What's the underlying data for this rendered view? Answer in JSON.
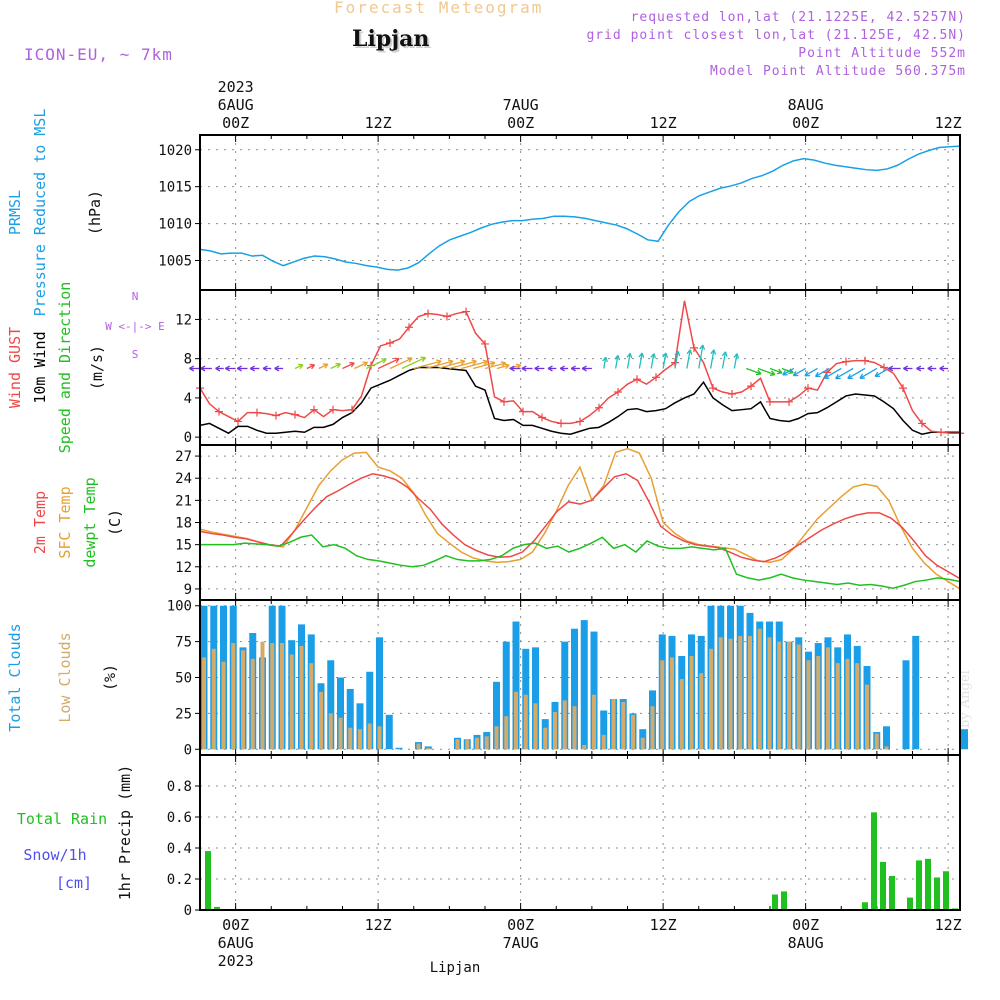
{
  "header": {
    "title": "Forecast Meteogram",
    "location": "Lipjan",
    "model": "ICON-EU, ~ 7km",
    "info": [
      "requested lon,lat (21.1225E, 42.5257N)",
      "grid point closest lon,lat (21.125E, 42.5N)",
      "Point Altitude 552m",
      "Model Point Altitude 560.375m"
    ],
    "credit": "by Angel"
  },
  "colors": {
    "pressure": "#1aa0e6",
    "gust": "#f04848",
    "wind": "#000000",
    "temp2m": "#f04848",
    "sfc": "#e8a030",
    "dewpoint": "#20c020",
    "total_cloud": "#1a9ee8",
    "low_cloud": "#d4aa6a",
    "rain": "#20c020",
    "snow": "#5050f0",
    "label_blue": "#1aa0e6",
    "label_green": "#20c020",
    "label_orange": "#e8a030",
    "label_red": "#f04848",
    "label_purple": "#b060e0",
    "grid": "#8c8c8c"
  },
  "chart_data": {
    "type": "meteogram",
    "time_axis": {
      "unit": "hours from 2023-08-05 21Z",
      "range": [
        0,
        64
      ],
      "top_ticks": [
        {
          "hour": 3,
          "lines": [
            "2023",
            "6AUG",
            "00Z"
          ]
        },
        {
          "hour": 15,
          "lines": [
            "12Z"
          ]
        },
        {
          "hour": 27,
          "lines": [
            "7AUG",
            "00Z"
          ]
        },
        {
          "hour": 39,
          "lines": [
            "12Z"
          ]
        },
        {
          "hour": 51,
          "lines": [
            "8AUG",
            "00Z"
          ]
        },
        {
          "hour": 63,
          "lines": [
            "12Z"
          ]
        }
      ],
      "bottom_ticks": [
        {
          "hour": 3,
          "lines": [
            "00Z",
            "6AUG",
            "2023"
          ]
        },
        {
          "hour": 15,
          "lines": [
            "12Z"
          ]
        },
        {
          "hour": 27,
          "lines": [
            "00Z",
            "7AUG"
          ]
        },
        {
          "hour": 39,
          "lines": [
            "12Z"
          ]
        },
        {
          "hour": 51,
          "lines": [
            "00Z",
            "8AUG"
          ]
        },
        {
          "hour": 63,
          "lines": [
            "12Z"
          ]
        }
      ],
      "footer_label": "Lipjan"
    },
    "panels": {
      "pressure": {
        "type": "line",
        "labels": [
          [
            "PRMSL",
            "pressure"
          ],
          [
            "Pressure Reduced to MSL",
            "pressure"
          ]
        ],
        "unit": "(hPa)",
        "ylim": [
          1001,
          1022
        ],
        "yticks": [
          1005,
          1010,
          1015,
          1020
        ],
        "series": [
          {
            "name": "PRMSL",
            "values": [
              1006.5,
              1006.3,
              1005.9,
              1006.0,
              1006.0,
              1005.6,
              1005.7,
              1004.9,
              1004.3,
              1004.8,
              1005.3,
              1005.6,
              1005.5,
              1005.2,
              1004.8,
              1004.6,
              1004.3,
              1004.1,
              1003.8,
              1003.7,
              1004.0,
              1004.7,
              1005.9,
              1007.0,
              1007.8,
              1008.3,
              1008.8,
              1009.4,
              1009.9,
              1010.2,
              1010.4,
              1010.4,
              1010.6,
              1010.7,
              1011.0,
              1011.0,
              1010.9,
              1010.7,
              1010.4,
              1010.1,
              1009.8,
              1009.3,
              1008.6,
              1007.8,
              1007.6,
              1009.8,
              1011.6,
              1013.0,
              1013.8,
              1014.3,
              1014.8,
              1015.1,
              1015.5,
              1016.1,
              1016.5,
              1017.1,
              1017.9,
              1018.5,
              1018.8,
              1018.6,
              1018.2,
              1017.9,
              1017.7,
              1017.5,
              1017.3,
              1017.2,
              1017.4,
              1017.9,
              1018.7,
              1019.4,
              1019.9,
              1020.3,
              1020.4,
              1020.5
            ]
          }
        ]
      },
      "wind": {
        "type": "line",
        "labels": [
          [
            "Wind GUST",
            "gust"
          ],
          [
            "10m Wind",
            "wind"
          ],
          [
            "Speed and Direction",
            "dewpoint"
          ]
        ],
        "unit": "(m/s)",
        "compass": [
          "N",
          "W <-|-> E",
          "S"
        ],
        "ylim": [
          -0.8,
          15
        ],
        "yticks": [
          0,
          4,
          8,
          12
        ],
        "series": [
          {
            "name": "Wind GUST",
            "values": [
              5.0,
              3.4,
              2.6,
              2.1,
              1.6,
              2.5,
              2.5,
              2.4,
              2.2,
              2.5,
              2.3,
              2.0,
              2.8,
              2.1,
              2.8,
              2.7,
              2.8,
              4.2,
              7.3,
              9.3,
              9.6,
              10.0,
              11.2,
              12.3,
              12.6,
              12.5,
              12.3,
              12.6,
              12.8,
              10.6,
              9.5,
              4.1,
              3.6,
              3.7,
              2.6,
              2.6,
              2.0,
              1.6,
              1.4,
              1.4,
              1.6,
              2.2,
              3.0,
              4.0,
              4.6,
              5.4,
              5.9,
              5.4,
              6.1,
              6.9,
              7.6,
              13.9,
              9.1,
              7.6,
              5.0,
              4.6,
              4.4,
              4.6,
              5.2,
              6.0,
              3.6,
              3.6,
              3.6,
              4.2,
              5.0,
              4.8,
              6.6,
              7.5,
              7.7,
              7.8,
              7.8,
              7.6,
              7.1,
              6.5,
              5.0,
              2.7,
              1.4,
              0.6,
              0.5,
              0.4,
              0.4
            ]
          },
          {
            "name": "10m Wind",
            "values": [
              1.2,
              1.4,
              0.9,
              0.4,
              1.1,
              1.1,
              0.7,
              0.4,
              0.4,
              0.5,
              0.6,
              0.5,
              1.0,
              1.0,
              1.3,
              2.0,
              2.5,
              3.5,
              5.0,
              5.4,
              5.8,
              6.3,
              6.8,
              7.1,
              7.1,
              7.1,
              7.0,
              6.9,
              6.8,
              5.2,
              4.8,
              1.9,
              1.7,
              1.8,
              1.2,
              1.2,
              0.9,
              0.6,
              0.4,
              0.3,
              0.6,
              0.9,
              1.0,
              1.5,
              2.1,
              2.8,
              2.9,
              2.6,
              2.7,
              2.9,
              3.5,
              4.0,
              4.4,
              5.6,
              4.0,
              3.3,
              2.7,
              2.8,
              2.9,
              3.6,
              1.9,
              1.7,
              1.6,
              1.9,
              2.4,
              2.5,
              3.0,
              3.6,
              4.2,
              4.4,
              4.3,
              4.2,
              3.6,
              2.9,
              1.7,
              0.7,
              0.3,
              0.5,
              0.5,
              0.5,
              0.5
            ]
          }
        ]
      },
      "temperature": {
        "type": "line",
        "labels": [
          [
            "2m Temp",
            "temp2m"
          ],
          [
            "SFC Temp",
            "sfc"
          ],
          [
            "dewpt Temp",
            "dewpoint"
          ]
        ],
        "unit": "(C)",
        "ylim": [
          7.5,
          28.5
        ],
        "yticks": [
          9,
          12,
          15,
          18,
          21,
          24,
          27
        ],
        "series": [
          {
            "name": "2m Temp",
            "values": [
              16.8,
              16.5,
              16.3,
              16.0,
              15.8,
              15.4,
              15.0,
              14.8,
              16.5,
              18.3,
              20.0,
              21.5,
              22.3,
              23.2,
              24.0,
              24.6,
              24.3,
              23.8,
              22.8,
              21.2,
              19.8,
              17.8,
              16.3,
              15.0,
              14.2,
              13.6,
              13.3,
              13.4,
              14.0,
              15.5,
              17.5,
              19.5,
              20.8,
              20.5,
              21.0,
              22.6,
              24.2,
              24.6,
              23.7,
              20.8,
              17.5,
              16.3,
              15.5,
              15.0,
              14.8,
              14.6,
              14.0,
              13.3,
              12.9,
              12.7,
              13.2,
              14.0,
              15.0,
              16.0,
              17.0,
              17.8,
              18.5,
              19.0,
              19.3,
              19.3,
              18.6,
              17.3,
              15.5,
              13.5,
              12.2,
              11.3,
              10.4
            ]
          },
          {
            "name": "SFC Temp",
            "values": [
              17.1,
              16.7,
              16.4,
              16.1,
              15.8,
              15.3,
              14.9,
              14.7,
              17.0,
              20.0,
              23.0,
              25.0,
              26.5,
              27.4,
              27.5,
              25.5,
              25.0,
              24.0,
              22.0,
              19.0,
              16.5,
              15.2,
              14.0,
              13.2,
              12.8,
              12.6,
              12.7,
              13.0,
              14.0,
              16.5,
              19.5,
              23.0,
              25.5,
              21.0,
              23.0,
              27.5,
              28.0,
              27.4,
              24.0,
              18.0,
              16.5,
              15.5,
              15.0,
              14.8,
              14.6,
              14.4,
              13.6,
              12.8,
              12.6,
              13.0,
              14.5,
              16.5,
              18.5,
              20.0,
              21.5,
              22.8,
              23.2,
              22.9,
              21.0,
              17.5,
              14.5,
              12.5,
              11.0,
              10.0,
              9.0
            ]
          },
          {
            "name": "dewpt Temp",
            "values": [
              15.0,
              15.0,
              15.0,
              15.0,
              15.2,
              15.1,
              15.0,
              14.8,
              15.3,
              16.0,
              16.3,
              14.7,
              15.0,
              14.5,
              13.5,
              13.0,
              12.8,
              12.5,
              12.2,
              12.0,
              12.2,
              12.8,
              13.5,
              13.0,
              12.8,
              12.8,
              13.0,
              13.5,
              14.5,
              15.0,
              15.2,
              14.5,
              14.8,
              14.0,
              14.5,
              15.2,
              16.0,
              14.5,
              15.0,
              14.0,
              15.5,
              14.8,
              14.5,
              14.5,
              14.7,
              14.5,
              14.3,
              14.5,
              11.0,
              10.5,
              10.2,
              10.5,
              11.0,
              10.5,
              10.2,
              10.0,
              9.8,
              9.6,
              9.8,
              9.5,
              9.6,
              9.4,
              9.1,
              9.5,
              10.0,
              10.2,
              10.5,
              10.3,
              10.0
            ]
          }
        ]
      },
      "clouds": {
        "type": "bar",
        "labels": [
          [
            "Total Clouds",
            "total_cloud"
          ],
          [
            "Low Clouds",
            "low_cloud"
          ]
        ],
        "unit": "(%)",
        "ylim": [
          -4,
          104
        ],
        "yticks": [
          0,
          25,
          50,
          75,
          100
        ],
        "series": [
          {
            "name": "Total Clouds",
            "values": [
              100,
              100,
              100,
              100,
              71,
              81,
              64,
              100,
              100,
              76,
              87,
              80,
              46,
              62,
              50,
              42,
              32,
              54,
              78,
              24,
              1,
              0,
              5,
              2,
              0,
              0,
              8,
              7,
              10,
              12,
              47,
              75,
              89,
              70,
              71,
              21,
              33,
              75,
              84,
              90,
              82,
              27,
              35,
              35,
              25,
              14,
              41,
              80,
              79,
              65,
              80,
              79,
              100,
              100,
              100,
              100,
              95,
              89,
              89,
              89,
              75,
              78,
              68,
              74,
              78,
              71,
              80,
              72,
              58,
              12,
              16,
              0,
              62,
              79,
              0,
              0,
              0,
              0,
              14
            ]
          },
          {
            "name": "Low Clouds",
            "values": [
              64,
              70,
              61,
              74,
              69,
              63,
              75,
              74,
              74,
              66,
              72,
              60,
              40,
              25,
              22,
              15,
              14,
              18,
              16,
              0,
              0,
              0,
              4,
              1,
              0,
              0,
              7,
              7,
              8,
              9,
              16,
              23,
              40,
              38,
              32,
              15,
              26,
              34,
              30,
              3,
              38,
              10,
              35,
              33,
              24,
              8,
              30,
              62,
              64,
              49,
              65,
              53,
              70,
              78,
              77,
              79,
              79,
              84,
              78,
              75,
              75,
              73,
              62,
              65,
              71,
              60,
              63,
              60,
              45,
              11,
              2,
              0,
              0,
              0,
              0,
              0,
              0,
              0,
              0
            ]
          }
        ]
      },
      "precipitation": {
        "type": "bar",
        "labels": [
          [
            "Total Rain",
            "rain"
          ],
          [
            "Snow/1h",
            "snow"
          ],
          [
            "[cm]",
            "snow"
          ]
        ],
        "unit": "1hr Precip (mm)",
        "ylim": [
          0,
          1.0
        ],
        "yticks": [
          0,
          0.2,
          0.4,
          0.6,
          0.8
        ],
        "yticklabels": [
          "0",
          "0.2",
          "0.4",
          "0.6",
          "0.8"
        ],
        "series": [
          {
            "name": "Total Rain",
            "values": [
              0.38,
              0.02,
              0,
              0,
              0,
              0,
              0,
              0,
              0,
              0,
              0,
              0,
              0,
              0,
              0,
              0,
              0,
              0,
              0,
              0,
              0,
              0,
              0,
              0,
              0,
              0,
              0,
              0,
              0,
              0,
              0,
              0,
              0,
              0,
              0,
              0,
              0,
              0,
              0,
              0,
              0,
              0,
              0,
              0,
              0,
              0,
              0,
              0,
              0,
              0,
              0,
              0,
              0,
              0,
              0,
              0,
              0,
              0,
              0,
              0,
              0,
              0,
              0,
              0.1,
              0.12,
              0,
              0,
              0,
              0,
              0,
              0,
              0,
              0,
              0.05,
              0.63,
              0.31,
              0.22,
              0,
              0.08,
              0.32,
              0.33,
              0.21,
              0.25,
              0.01
            ]
          }
        ]
      }
    }
  }
}
